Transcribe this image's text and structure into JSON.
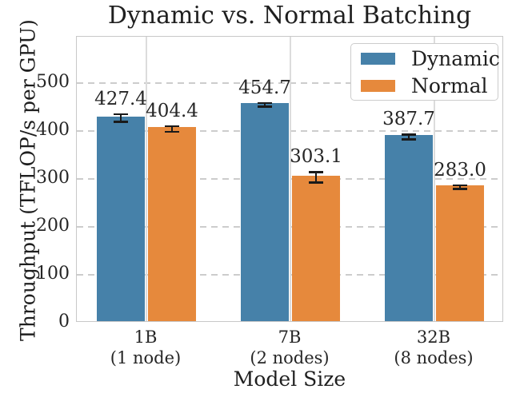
{
  "chart_data": {
    "type": "bar",
    "title": "Dynamic vs. Normal Batching",
    "xlabel": "Model Size",
    "ylabel": "Throughput (TFLOP/s per GPU)",
    "categories": [
      {
        "label": "1B",
        "sublabel": "(1 node)"
      },
      {
        "label": "7B",
        "sublabel": "(2 nodes)"
      },
      {
        "label": "32B",
        "sublabel": "(8 nodes)"
      }
    ],
    "series": [
      {
        "name": "Dynamic",
        "color": "#4681A9",
        "values": [
          427.4,
          454.7,
          387.7
        ],
        "value_labels": [
          "427.4",
          "454.7",
          "387.7"
        ],
        "errors": [
          10,
          6,
          7
        ]
      },
      {
        "name": "Normal",
        "color": "#E6893C",
        "values": [
          404.4,
          303.1,
          283.0
        ],
        "value_labels": [
          "404.4",
          "303.1",
          "283.0"
        ],
        "errors": [
          8,
          13,
          6
        ]
      }
    ],
    "yticks": [
      0,
      100,
      200,
      300,
      400,
      500
    ],
    "ylim": [
      0,
      595
    ],
    "grid": {
      "horizontal": "dashed",
      "vertical": "solid"
    },
    "legend_position": "upper right",
    "error_bar_color": "#1a1a1a"
  }
}
